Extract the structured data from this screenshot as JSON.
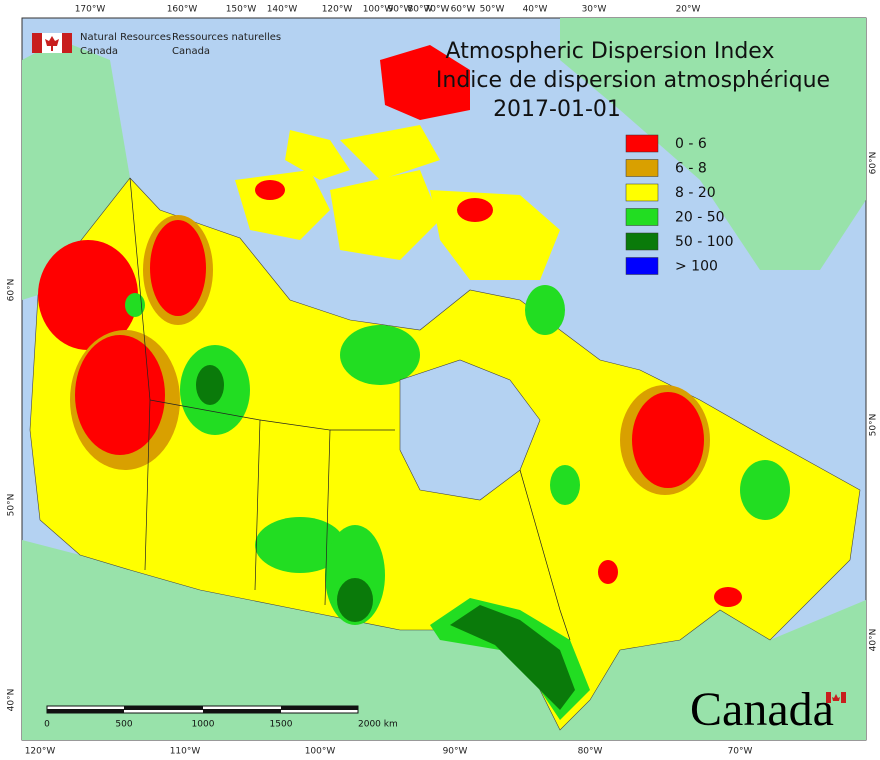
{
  "header": {
    "agency_en": [
      "Natural Resources",
      "Canada"
    ],
    "agency_fr": [
      "Ressources naturelles",
      "Canada"
    ]
  },
  "title": {
    "line1": "Atmospheric Dispersion Index",
    "line2": "Indice de dispersion atmosphérique",
    "date": "2017-01-01"
  },
  "legend": [
    {
      "label": "0 - 6",
      "color": "#ff0000"
    },
    {
      "label": "6 - 8",
      "color": "#d9a000"
    },
    {
      "label": "8 - 20",
      "color": "#ffff00"
    },
    {
      "label": "20 - 50",
      "color": "#22dd22"
    },
    {
      "label": "50 - 100",
      "color": "#0a7a0a"
    },
    {
      "label": "> 100",
      "color": "#0000ff"
    }
  ],
  "graticule": {
    "top": [
      "170°W",
      "160°W",
      "150°W",
      "140°W",
      "120°W",
      "100°W",
      "90°W",
      "80°W",
      "70°W",
      "60°W",
      "50°W",
      "40°W",
      "30°W",
      "20°W"
    ],
    "bottom": [
      "120°W",
      "110°W",
      "100°W",
      "90°W",
      "80°W",
      "70°W"
    ],
    "left": [
      "60°N",
      "50°N",
      "40°N"
    ],
    "right": [
      "60°N",
      "50°N",
      "40°N"
    ]
  },
  "scale_bar": {
    "labels": [
      "0",
      "500",
      "1000",
      "1500",
      "2000 km"
    ]
  },
  "wordmark": "Canada"
}
